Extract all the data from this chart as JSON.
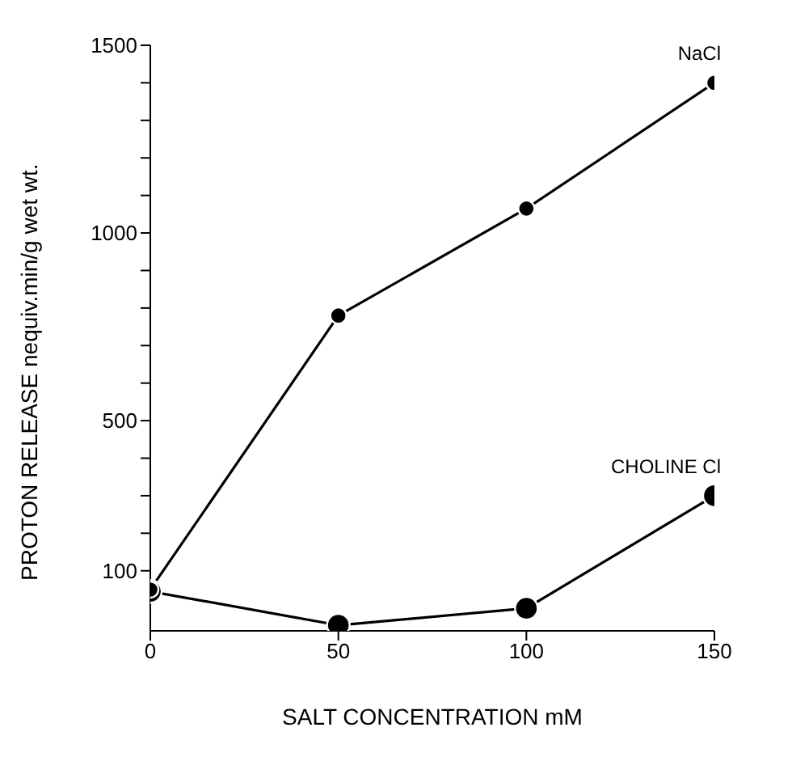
{
  "chart_data": {
    "type": "line",
    "xlabel": "SALT CONCENTRATION mM",
    "ylabel": "PROTON RELEASE nequiv.min/g wet wt.",
    "x": [
      0,
      50,
      100,
      150
    ],
    "series": [
      {
        "name": "NaCl",
        "color": "#000000",
        "values": [
          50,
          780,
          1065,
          1400
        ]
      },
      {
        "name": "CHOLINE Cl",
        "color": "#000000",
        "values": [
          45,
          -45,
          0,
          300
        ]
      }
    ],
    "xlim": [
      0,
      150
    ],
    "xticks": [
      0,
      50,
      100,
      150
    ],
    "ylim": [
      -60,
      1500
    ],
    "yticks": [
      {
        "value": 100,
        "label": "100"
      },
      {
        "value": 200,
        "label": null
      },
      {
        "value": 300,
        "label": null
      },
      {
        "value": 400,
        "label": null
      },
      {
        "value": 500,
        "label": "500"
      },
      {
        "value": 600,
        "label": null
      },
      {
        "value": 700,
        "label": null
      },
      {
        "value": 800,
        "label": null
      },
      {
        "value": 900,
        "label": null
      },
      {
        "value": 1000,
        "label": "1000"
      },
      {
        "value": 1100,
        "label": null
      },
      {
        "value": 1200,
        "label": null
      },
      {
        "value": 1300,
        "label": null
      },
      {
        "value": 1400,
        "label": null
      },
      {
        "value": 1500,
        "label": "1500"
      }
    ],
    "grid": false,
    "legend": false,
    "marker": "circle",
    "line_style": "solid"
  }
}
